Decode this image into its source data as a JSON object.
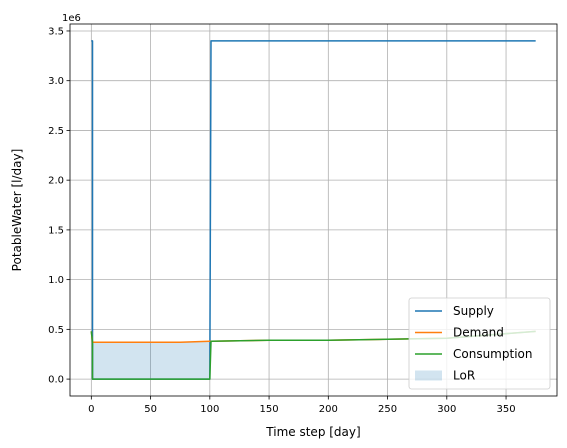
{
  "chart_data": {
    "type": "line",
    "title": "",
    "xlabel": "Time step [day]",
    "ylabel": "PotableWater [l/day]",
    "offset_label": "1e6",
    "xlim": [
      -18,
      393
    ],
    "ylim": [
      -170000,
      3570000
    ],
    "x_ticks": [
      0,
      50,
      100,
      150,
      200,
      250,
      300,
      350
    ],
    "x_tick_labels": [
      "0",
      "50",
      "100",
      "150",
      "200",
      "250",
      "300",
      "350"
    ],
    "y_ticks": [
      0,
      500000,
      1000000,
      1500000,
      2000000,
      2500000,
      3000000,
      3500000
    ],
    "y_tick_labels": [
      "0.0",
      "0.5",
      "1.0",
      "1.5",
      "2.0",
      "2.5",
      "3.0",
      "3.5"
    ],
    "grid": true,
    "legend_position": "lower-right",
    "series": [
      {
        "name": "Supply",
        "color": "#1f77b4",
        "x": [
          0,
          1,
          1,
          100,
          101,
          375
        ],
        "y": [
          3400000,
          3400000,
          0,
          0,
          3400000,
          3400000
        ]
      },
      {
        "name": "Demand",
        "color": "#ff7f0e",
        "x": [
          0,
          1,
          75,
          100,
          101,
          150,
          200,
          250,
          300,
          375
        ],
        "y": [
          480000,
          370000,
          370000,
          380000,
          380000,
          390000,
          390000,
          400000,
          410000,
          480000
        ]
      },
      {
        "name": "Consumption",
        "color": "#2ca02c",
        "x": [
          0,
          1,
          1,
          100,
          101,
          150,
          200,
          250,
          300,
          375
        ],
        "y": [
          480000,
          370000,
          0,
          0,
          380000,
          390000,
          390000,
          400000,
          410000,
          480000
        ]
      }
    ],
    "area": {
      "name": "LoR",
      "color": "#1f77b4",
      "opacity": 0.2,
      "x": [
        1,
        75,
        100
      ],
      "y_top": [
        370000,
        370000,
        380000
      ],
      "y_bottom": [
        0,
        0,
        0
      ]
    }
  }
}
